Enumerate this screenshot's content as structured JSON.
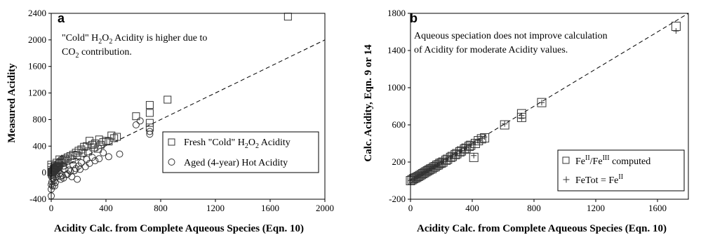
{
  "colors": {
    "marker": "#333333",
    "axis": "#000000",
    "background": "#ffffff",
    "fit_line": "#000000"
  },
  "chart_data": [
    {
      "panel": "a",
      "type": "scatter",
      "xlabel": "Acidity Calc. from Complete Aqueous Species (Eqn. 10)",
      "ylabel": "Measured Acidity",
      "xlim": [
        0,
        2000
      ],
      "ylim": [
        -400,
        2400
      ],
      "xticks": [
        0,
        400,
        800,
        1200,
        1600,
        2000
      ],
      "yticks": [
        -400,
        0,
        400,
        800,
        1200,
        1600,
        2000,
        2400
      ],
      "grid": false,
      "legend_position": "bottom-right",
      "annotation": {
        "line1_pre": "\"Cold\" H",
        "line1_sub1": "2",
        "line1_mid": "O",
        "line1_sub2": "2",
        "line1_post": " Acidity is higher due to",
        "line2_pre": "CO",
        "line2_sub": "2",
        "line2_post": " contribution."
      },
      "reference_line": {
        "style": "dashed",
        "x": [
          0,
          2000
        ],
        "y": [
          0,
          2000
        ]
      },
      "series": [
        {
          "name": "Fresh \"Cold\" H2O2 Acidity",
          "legend": {
            "pre": "Fresh \"Cold\" H",
            "sub1": "2",
            "mid": "O",
            "sub2": "2",
            "post": " Acidity"
          },
          "marker": "square",
          "points": [
            [
              1730,
              2350
            ],
            [
              850,
              1100
            ],
            [
              720,
              1020
            ],
            [
              720,
              900
            ],
            [
              720,
              750
            ],
            [
              720,
              680
            ],
            [
              620,
              850
            ],
            [
              480,
              540
            ],
            [
              440,
              560
            ],
            [
              400,
              480
            ],
            [
              380,
              460
            ],
            [
              350,
              500
            ],
            [
              320,
              440
            ],
            [
              300,
              420
            ],
            [
              280,
              480
            ],
            [
              260,
              400
            ],
            [
              240,
              390
            ],
            [
              220,
              350
            ],
            [
              200,
              330
            ],
            [
              180,
              300
            ],
            [
              160,
              270
            ],
            [
              140,
              250
            ],
            [
              120,
              230
            ],
            [
              100,
              210
            ],
            [
              90,
              190
            ],
            [
              80,
              180
            ],
            [
              70,
              160
            ],
            [
              60,
              140
            ],
            [
              55,
              120
            ],
            [
              50,
              100
            ],
            [
              45,
              90
            ],
            [
              40,
              80
            ],
            [
              35,
              70
            ],
            [
              30,
              55
            ],
            [
              25,
              45
            ],
            [
              20,
              35
            ],
            [
              15,
              25
            ],
            [
              10,
              15
            ],
            [
              5,
              10
            ],
            [
              0,
              5
            ],
            [
              0,
              40
            ],
            [
              0,
              80
            ],
            [
              0,
              120
            ],
            [
              5,
              -20
            ],
            [
              10,
              -40
            ],
            [
              20,
              60
            ],
            [
              30,
              100
            ],
            [
              40,
              150
            ],
            [
              60,
              200
            ],
            [
              80,
              150
            ],
            [
              110,
              180
            ],
            [
              150,
              200
            ],
            [
              190,
              260
            ],
            [
              230,
              300
            ],
            [
              270,
              320
            ],
            [
              310,
              380
            ],
            [
              340,
              360
            ],
            [
              360,
              420
            ],
            [
              420,
              470
            ],
            [
              460,
              520
            ]
          ]
        },
        {
          "name": "Aged (4-year) Hot Acidity",
          "legend": {
            "pre": "Aged (4-year) Hot Acidity"
          },
          "marker": "circle",
          "points": [
            [
              720,
              620
            ],
            [
              720,
              580
            ],
            [
              620,
              720
            ],
            [
              650,
              780
            ],
            [
              500,
              280
            ],
            [
              420,
              240
            ],
            [
              380,
              300
            ],
            [
              300,
              230
            ],
            [
              260,
              200
            ],
            [
              220,
              150
            ],
            [
              200,
              100
            ],
            [
              180,
              60
            ],
            [
              160,
              120
            ],
            [
              140,
              20
            ],
            [
              120,
              -20
            ],
            [
              100,
              50
            ],
            [
              90,
              -80
            ],
            [
              80,
              -40
            ],
            [
              70,
              -100
            ],
            [
              60,
              -10
            ],
            [
              50,
              30
            ],
            [
              40,
              -60
            ],
            [
              30,
              -150
            ],
            [
              25,
              -200
            ],
            [
              20,
              -120
            ],
            [
              15,
              -80
            ],
            [
              10,
              -30
            ],
            [
              5,
              -10
            ],
            [
              0,
              -350
            ],
            [
              0,
              -250
            ],
            [
              0,
              -180
            ],
            [
              5,
              -140
            ],
            [
              10,
              -200
            ],
            [
              15,
              -90
            ],
            [
              20,
              20
            ],
            [
              30,
              60
            ],
            [
              40,
              -20
            ],
            [
              60,
              80
            ],
            [
              70,
              -60
            ],
            [
              90,
              100
            ],
            [
              110,
              -30
            ],
            [
              130,
              40
            ],
            [
              150,
              -60
            ],
            [
              170,
              30
            ],
            [
              190,
              -100
            ],
            [
              210,
              50
            ],
            [
              250,
              90
            ],
            [
              280,
              140
            ],
            [
              320,
              180
            ],
            [
              350,
              210
            ]
          ]
        }
      ]
    },
    {
      "panel": "b",
      "type": "scatter",
      "xlabel": "Acidity Calc. from Complete Aqueous Species (Eqn. 10)",
      "ylabel": "Calc. Acidity, Eqn. 9 or 14",
      "xlim": [
        0,
        1800
      ],
      "ylim": [
        -200,
        1800
      ],
      "xticks": [
        0,
        400,
        800,
        1200,
        1600
      ],
      "yticks": [
        -200,
        200,
        600,
        1000,
        1400,
        1800
      ],
      "grid": false,
      "legend_position": "bottom-right",
      "annotation": {
        "line1": "Aqueous speciation does not improve calculation",
        "line2": "of Acidity for moderate Acidity values."
      },
      "reference_line": {
        "style": "dashed",
        "x": [
          0,
          1800
        ],
        "y": [
          0,
          1800
        ]
      },
      "series": [
        {
          "name": "FeII/FeIII computed",
          "legend": {
            "pre": "Fe",
            "sup1": "II",
            "mid": "/Fe",
            "sup2": "III",
            "post": " computed"
          },
          "marker": "square",
          "points": [
            [
              1720,
              1660
            ],
            [
              850,
              840
            ],
            [
              720,
              720
            ],
            [
              720,
              680
            ],
            [
              610,
              600
            ],
            [
              480,
              460
            ],
            [
              420,
              400
            ],
            [
              410,
              250
            ],
            [
              380,
              370
            ],
            [
              350,
              340
            ],
            [
              320,
              310
            ],
            [
              290,
              280
            ],
            [
              260,
              250
            ],
            [
              230,
              220
            ],
            [
              200,
              190
            ],
            [
              180,
              170
            ],
            [
              160,
              150
            ],
            [
              140,
              130
            ],
            [
              120,
              115
            ],
            [
              100,
              95
            ],
            [
              80,
              75
            ],
            [
              60,
              55
            ],
            [
              40,
              35
            ],
            [
              20,
              20
            ],
            [
              0,
              0
            ],
            [
              10,
              10
            ],
            [
              30,
              28
            ],
            [
              50,
              45
            ],
            [
              70,
              65
            ],
            [
              90,
              85
            ],
            [
              110,
              105
            ],
            [
              130,
              125
            ],
            [
              150,
              145
            ],
            [
              170,
              165
            ],
            [
              190,
              185
            ],
            [
              210,
              200
            ],
            [
              240,
              230
            ],
            [
              270,
              260
            ],
            [
              300,
              290
            ],
            [
              330,
              320
            ],
            [
              360,
              350
            ],
            [
              390,
              380
            ],
            [
              440,
              430
            ],
            [
              460,
              450
            ]
          ]
        },
        {
          "name": "FeTot = FeII",
          "legend": {
            "pre": "FeTot = Fe",
            "sup1": "II"
          },
          "marker": "plus",
          "points": [
            [
              1720,
              1610
            ],
            [
              850,
              840
            ],
            [
              720,
              700
            ],
            [
              720,
              670
            ],
            [
              610,
              610
            ],
            [
              480,
              470
            ],
            [
              420,
              410
            ],
            [
              410,
              270
            ],
            [
              380,
              375
            ],
            [
              350,
              345
            ],
            [
              320,
              315
            ],
            [
              290,
              285
            ],
            [
              260,
              255
            ],
            [
              230,
              225
            ],
            [
              200,
              195
            ],
            [
              180,
              175
            ],
            [
              160,
              155
            ],
            [
              140,
              135
            ],
            [
              120,
              118
            ],
            [
              100,
              98
            ],
            [
              80,
              78
            ],
            [
              60,
              58
            ],
            [
              40,
              38
            ],
            [
              20,
              20
            ],
            [
              0,
              2
            ],
            [
              10,
              12
            ],
            [
              30,
              30
            ],
            [
              50,
              48
            ],
            [
              70,
              68
            ],
            [
              90,
              88
            ],
            [
              110,
              108
            ],
            [
              130,
              128
            ],
            [
              150,
              148
            ],
            [
              170,
              168
            ],
            [
              190,
              188
            ],
            [
              210,
              205
            ],
            [
              240,
              235
            ],
            [
              270,
              265
            ],
            [
              300,
              295
            ],
            [
              330,
              325
            ],
            [
              360,
              355
            ],
            [
              390,
              385
            ],
            [
              440,
              435
            ],
            [
              460,
              455
            ]
          ]
        }
      ]
    }
  ]
}
